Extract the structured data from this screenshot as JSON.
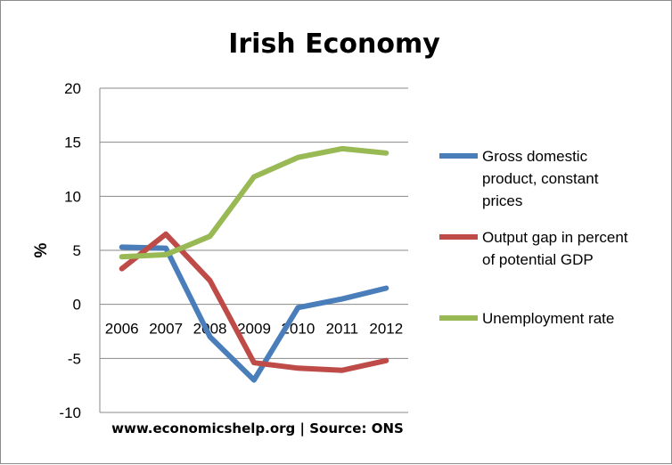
{
  "chart_data": {
    "type": "line",
    "title": "Irish Economy",
    "xlabel": "",
    "ylabel": "%",
    "categories": [
      "2006",
      "2007",
      "2008",
      "2009",
      "2010",
      "2011",
      "2012"
    ],
    "ylim": [
      -10,
      20
    ],
    "yticks": [
      -10,
      -5,
      0,
      5,
      10,
      15,
      20
    ],
    "grid": true,
    "legend_position": "right",
    "series": [
      {
        "name_lines": [
          "Gross domestic",
          "product, constant",
          "prices"
        ],
        "color": "#4a7ebb",
        "values": [
          5.3,
          5.2,
          -3.0,
          -7.0,
          -0.3,
          0.5,
          1.5
        ]
      },
      {
        "name_lines": [
          "Output gap in percent",
          "of potential GDP"
        ],
        "color": "#be4b48",
        "values": [
          3.3,
          6.5,
          2.2,
          -5.4,
          -5.9,
          -6.1,
          -5.2
        ]
      },
      {
        "name_lines": [
          "Unemployment rate"
        ],
        "color": "#98b954",
        "values": [
          4.4,
          4.6,
          6.3,
          11.8,
          13.6,
          14.4,
          14.0
        ]
      }
    ],
    "source": "www.economicshelp.org | Source: ONS"
  }
}
